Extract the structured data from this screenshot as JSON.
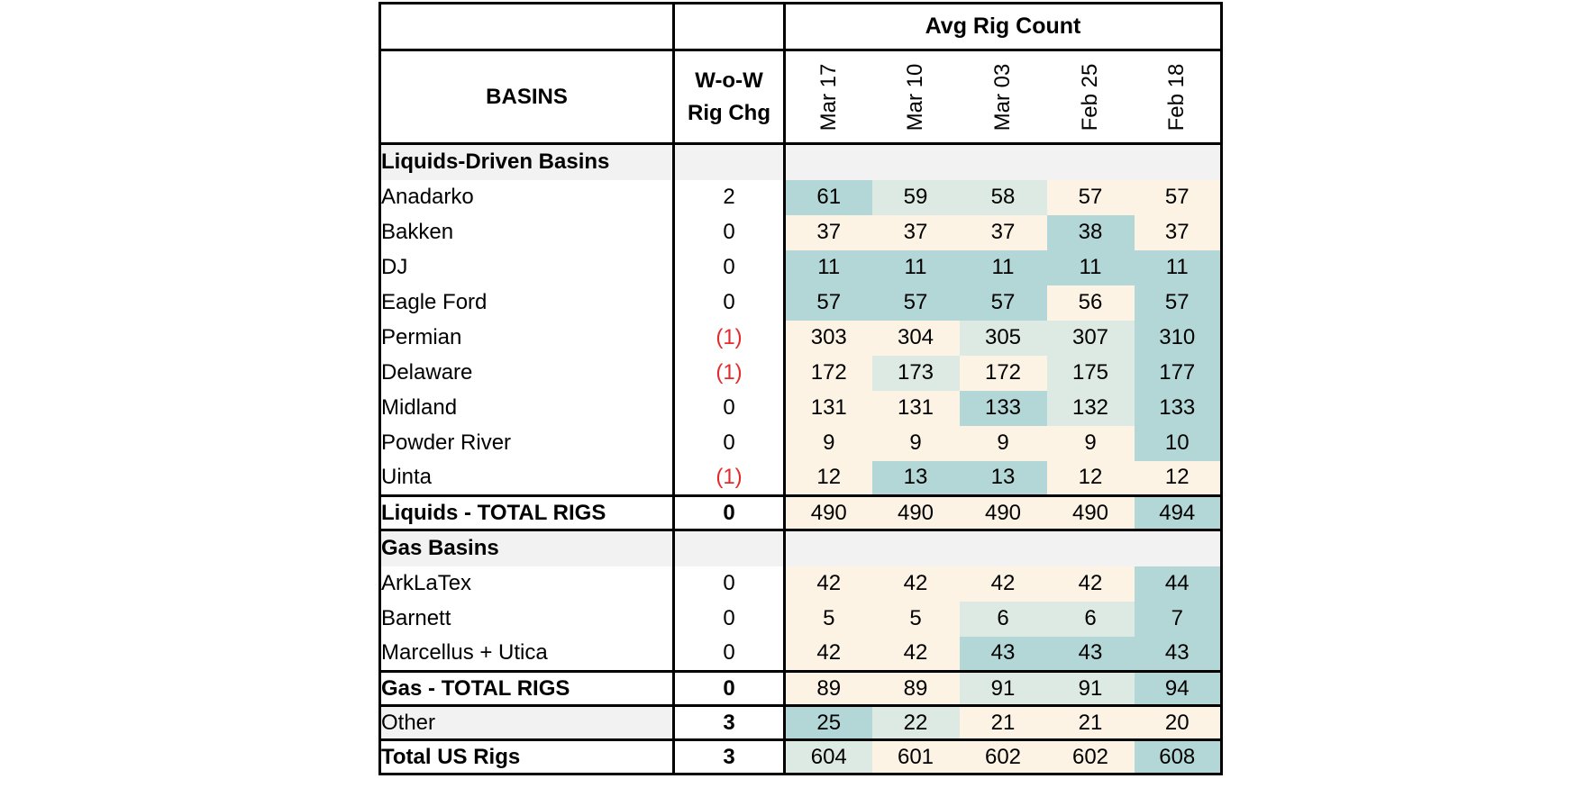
{
  "header": {
    "group_label": "Avg Rig Count",
    "basins_label": "BASINS",
    "chg_label_line1": "W-o-W",
    "chg_label_line2": "Rig Chg",
    "dates": [
      "Mar 17",
      "Mar 10",
      "Mar 03",
      "Feb 25",
      "Feb 18"
    ]
  },
  "liquids": {
    "section_title": "Liquids-Driven Basins",
    "rows": [
      {
        "name": "Anadarko",
        "chg": "2",
        "values": [
          "61",
          "59",
          "58",
          "57",
          "57"
        ],
        "tints": [
          "hi",
          "mid",
          "mid",
          "lo",
          "lo"
        ]
      },
      {
        "name": "Bakken",
        "chg": "0",
        "values": [
          "37",
          "37",
          "37",
          "38",
          "37"
        ],
        "tints": [
          "lo",
          "lo",
          "lo",
          "hi",
          "lo"
        ]
      },
      {
        "name": "DJ",
        "chg": "0",
        "values": [
          "11",
          "11",
          "11",
          "11",
          "11"
        ],
        "tints": [
          "hi",
          "hi",
          "hi",
          "hi",
          "hi"
        ]
      },
      {
        "name": "Eagle Ford",
        "chg": "0",
        "values": [
          "57",
          "57",
          "57",
          "56",
          "57"
        ],
        "tints": [
          "hi",
          "hi",
          "hi",
          "lo",
          "hi"
        ]
      },
      {
        "name": "Permian",
        "chg": "(1)",
        "values": [
          "303",
          "304",
          "305",
          "307",
          "310"
        ],
        "tints": [
          "lo",
          "lo",
          "mid",
          "mid",
          "hi"
        ]
      },
      {
        "name": "Delaware",
        "indent": true,
        "chg": "(1)",
        "values": [
          "172",
          "173",
          "172",
          "175",
          "177"
        ],
        "tints": [
          "lo",
          "mid",
          "lo",
          "mid",
          "hi"
        ]
      },
      {
        "name": "Midland",
        "indent": true,
        "chg": "0",
        "values": [
          "131",
          "131",
          "133",
          "132",
          "133"
        ],
        "tints": [
          "lo",
          "lo",
          "hi",
          "mid",
          "hi"
        ]
      },
      {
        "name": "Powder River",
        "chg": "0",
        "values": [
          "9",
          "9",
          "9",
          "9",
          "10"
        ],
        "tints": [
          "lo",
          "lo",
          "lo",
          "lo",
          "hi"
        ]
      },
      {
        "name": "Uinta",
        "chg": "(1)",
        "values": [
          "12",
          "13",
          "13",
          "12",
          "12"
        ],
        "tints": [
          "lo",
          "hi",
          "hi",
          "lo",
          "lo"
        ]
      }
    ],
    "total": {
      "name": "Liquids - TOTAL RIGS",
      "chg": "0",
      "values": [
        "490",
        "490",
        "490",
        "490",
        "494"
      ],
      "tints": [
        "lo",
        "lo",
        "lo",
        "lo",
        "hi"
      ]
    }
  },
  "gas": {
    "section_title": "Gas Basins",
    "rows": [
      {
        "name": "ArkLaTex",
        "indent": true,
        "chg": "0",
        "values": [
          "42",
          "42",
          "42",
          "42",
          "44"
        ],
        "tints": [
          "lo",
          "lo",
          "lo",
          "lo",
          "hi"
        ]
      },
      {
        "name": "Barnett",
        "indent": true,
        "chg": "0",
        "values": [
          "5",
          "5",
          "6",
          "6",
          "7"
        ],
        "tints": [
          "lo",
          "lo",
          "mid",
          "mid",
          "hi"
        ]
      },
      {
        "name": "Marcellus + Utica",
        "indent": true,
        "chg": "0",
        "values": [
          "42",
          "42",
          "43",
          "43",
          "43"
        ],
        "tints": [
          "lo",
          "lo",
          "hi",
          "hi",
          "hi"
        ]
      }
    ],
    "total": {
      "name": "Gas - TOTAL RIGS",
      "chg": "0",
      "values": [
        "89",
        "89",
        "91",
        "91",
        "94"
      ],
      "tints": [
        "lo",
        "lo",
        "mid",
        "mid",
        "hi"
      ]
    }
  },
  "other": {
    "name": "Other",
    "chg": "3",
    "values": [
      "25",
      "22",
      "21",
      "21",
      "20"
    ],
    "tints": [
      "hi",
      "mid",
      "lo",
      "lo",
      "lo"
    ]
  },
  "us_total": {
    "name": "Total US Rigs",
    "chg": "3",
    "values": [
      "604",
      "601",
      "602",
      "602",
      "608"
    ],
    "tints": [
      "mid",
      "lo",
      "lo",
      "lo",
      "hi"
    ]
  },
  "colors": {
    "high": "#b3d7d7",
    "mid": "#dde9e3",
    "low": "#fdf3e4",
    "negative": "#e32b2b",
    "section_bg": "#f2f2f2"
  }
}
